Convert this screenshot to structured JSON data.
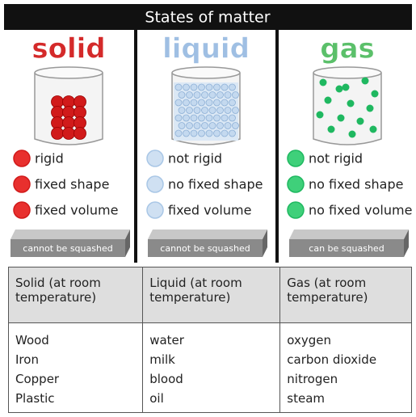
{
  "header": {
    "title": "States of matter"
  },
  "states": [
    {
      "name": "solid",
      "properties": [
        "rigid",
        "fixed shape",
        "fixed volume"
      ],
      "compression": "cannot be squashed"
    },
    {
      "name": "liquid",
      "properties": [
        "not rigid",
        "no fixed shape",
        "fixed volume"
      ],
      "compression": "cannot be squashed"
    },
    {
      "name": "gas",
      "properties": [
        "not rigid",
        "no fixed shape",
        "no fixed volume"
      ],
      "compression": "can be squashed"
    }
  ],
  "table": {
    "headers": [
      "Solid (at room temperature)",
      "Liquid (at room temperature)",
      "Gas (at room temperature)"
    ],
    "rows": [
      [
        "Wood",
        "water",
        "oxygen"
      ],
      [
        "Iron",
        "milk",
        "carbon dioxide"
      ],
      [
        "Copper",
        "blood",
        "nitrogen"
      ],
      [
        "Plastic",
        "oil",
        "steam"
      ]
    ]
  }
}
